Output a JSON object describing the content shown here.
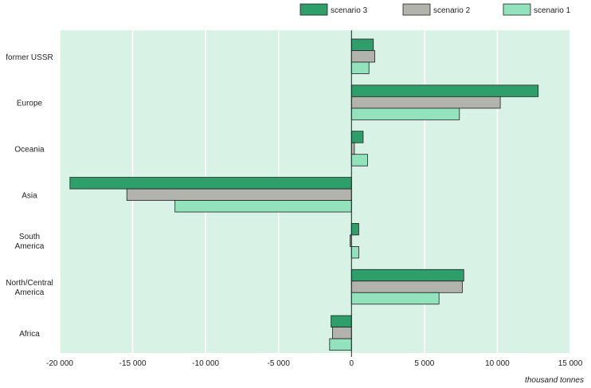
{
  "colors": {
    "plot_bg": "#d8f2e6",
    "scenario_3": "#2e9e6a",
    "scenario_2": "#b3b3ad",
    "scenario_1": "#93e2be",
    "bar_stroke": "#1f1f1f",
    "grid": "#ffffff"
  },
  "chart_data": {
    "type": "bar",
    "orientation": "horizontal",
    "title": "",
    "xlabel": "thousand tonnes",
    "ylabel": "",
    "xlim": [
      -20000,
      15000
    ],
    "x_ticks": [
      -20000,
      -15000,
      -10000,
      -5000,
      0,
      5000,
      10000,
      15000
    ],
    "x_tick_labels": [
      "-20 000",
      "-15 000",
      "-10 000",
      "-5 000",
      "0",
      "5 000",
      "10 000",
      "15 000"
    ],
    "grid": true,
    "legend_position": "top-right",
    "categories": [
      [
        "former USSR"
      ],
      [
        "Europe"
      ],
      [
        "Oceania"
      ],
      [
        "Asia"
      ],
      [
        "South",
        "America"
      ],
      [
        "North/Central",
        "America"
      ],
      [
        "Africa"
      ]
    ],
    "series": [
      {
        "name": "scenario 3",
        "color_key": "scenario_3",
        "values": [
          1500,
          12800,
          800,
          -19300,
          500,
          7700,
          -1400
        ]
      },
      {
        "name": "scenario 2",
        "color_key": "scenario_2",
        "values": [
          1600,
          10200,
          200,
          -15400,
          -100,
          7600,
          -1300
        ]
      },
      {
        "name": "scenario 1",
        "color_key": "scenario_1",
        "values": [
          1200,
          7400,
          1100,
          -12100,
          500,
          6000,
          -1500
        ]
      }
    ]
  }
}
